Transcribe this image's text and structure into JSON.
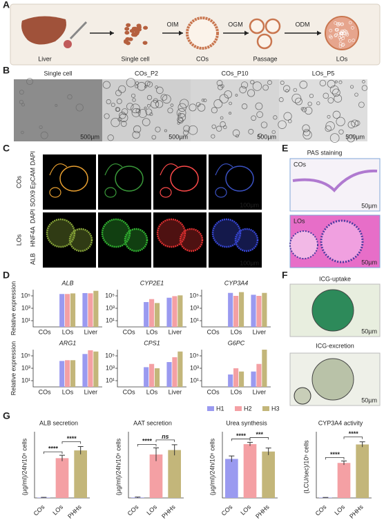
{
  "figure": {
    "panel_labels": [
      "A",
      "B",
      "C",
      "D",
      "E",
      "F",
      "G"
    ],
    "a": {
      "steps": [
        "Liver",
        "Single cell",
        "COs",
        "Passage",
        "LOs"
      ],
      "media": [
        "OIM",
        "OGM",
        "ODM"
      ]
    },
    "b": {
      "titles": [
        "Single cell",
        "COs_P2",
        "COs_P10",
        "LOs_P5"
      ],
      "scale": "500µm"
    },
    "c": {
      "rows": [
        "COs",
        "LOs"
      ],
      "stains": [
        [
          "SOX9",
          "EpCAM",
          "DAPI"
        ],
        [
          "ALB",
          "HNF4A",
          "DAPI"
        ]
      ],
      "scale": "100µm"
    },
    "e": {
      "title": "PAS staining",
      "labels": [
        "COs",
        "LOs"
      ],
      "scale": "50µm"
    },
    "f": {
      "labels": [
        "ICG-uptake",
        "ICG-excretion"
      ],
      "scale": "50µm"
    },
    "legend": [
      {
        "name": "H1",
        "color": "#9a9af0"
      },
      {
        "name": "H2",
        "color": "#f4a0a4"
      },
      {
        "name": "H3",
        "color": "#c3b67a"
      }
    ]
  },
  "chart_data": [
    {
      "type": "logbar",
      "title": "ALB",
      "ylabel": "Relative expression",
      "categories": [
        "COs",
        "LOs",
        "Liver"
      ],
      "log_scale": true,
      "ylim": [
        1,
        1000000
      ],
      "yticks": [
        {
          "value": 10,
          "label": "10¹"
        },
        {
          "value": 1000,
          "label": "10³"
        },
        {
          "value": 100000,
          "label": "10⁵"
        }
      ],
      "series": [
        {
          "values": [
            1,
            200000,
            280000
          ]
        },
        {
          "values": [
            1,
            200000,
            260000
          ]
        },
        {
          "values": [
            1,
            250000,
            650000
          ]
        }
      ]
    },
    {
      "type": "logbar",
      "title": "CYP2E1",
      "categories": [
        "COs",
        "LOs",
        "Liver"
      ],
      "log_scale": true,
      "ylim": [
        1,
        1000000
      ],
      "yticks": [
        {
          "value": 10,
          "label": "10¹"
        },
        {
          "value": 1000,
          "label": "10³"
        },
        {
          "value": 100000,
          "label": "10⁵"
        }
      ],
      "series": [
        {
          "values": [
            1,
            10000,
            50000
          ]
        },
        {
          "values": [
            1,
            30000,
            90000
          ]
        },
        {
          "values": [
            1,
            7000,
            120000
          ]
        }
      ]
    },
    {
      "type": "logbar",
      "title": "CYP3A4",
      "categories": [
        "COs",
        "LOs",
        "Liver"
      ],
      "log_scale": true,
      "ylim": [
        1,
        1000000
      ],
      "yticks": [
        {
          "value": 10,
          "label": "10¹"
        },
        {
          "value": 1000,
          "label": "10³"
        },
        {
          "value": 100000,
          "label": "10⁵"
        }
      ],
      "series": [
        {
          "values": [
            1,
            300000,
            150000
          ]
        },
        {
          "values": [
            1,
            100000,
            100000
          ]
        },
        {
          "values": [
            1,
            400000,
            300000
          ]
        }
      ]
    },
    {
      "type": "logbar",
      "title": "ARG1",
      "ylabel": "Relative expression",
      "categories": [
        "COs",
        "LOs",
        "Liver"
      ],
      "log_scale": true,
      "ylim": [
        1,
        1000000
      ],
      "yticks": [
        {
          "value": 10,
          "label": "10¹"
        },
        {
          "value": 1000,
          "label": "10³"
        },
        {
          "value": 100000,
          "label": "10⁵"
        }
      ],
      "series": [
        {
          "values": [
            1,
            15000,
            200000
          ]
        },
        {
          "values": [
            1,
            20000,
            800000
          ]
        },
        {
          "values": [
            1,
            20000,
            500000
          ]
        }
      ]
    },
    {
      "type": "logbar",
      "title": "CPS1",
      "categories": [
        "COs",
        "LOs",
        "Liver"
      ],
      "log_scale": true,
      "ylim": [
        1,
        1000000
      ],
      "yticks": [
        {
          "value": 10,
          "label": "10¹"
        },
        {
          "value": 1000,
          "label": "10³"
        },
        {
          "value": 100000,
          "label": "10⁵"
        }
      ],
      "series": [
        {
          "values": [
            1,
            1500,
            10000
          ]
        },
        {
          "values": [
            1,
            5000,
            60000
          ]
        },
        {
          "values": [
            1,
            1000,
            500000
          ]
        }
      ]
    },
    {
      "type": "logbar",
      "title": "G6PC",
      "categories": [
        "COs",
        "LOs",
        "Liver"
      ],
      "log_scale": true,
      "ylim": [
        1,
        1000000
      ],
      "yticks": [
        {
          "value": 10,
          "label": "10¹"
        },
        {
          "value": 1000,
          "label": "10³"
        },
        {
          "value": 100000,
          "label": "10⁵"
        }
      ],
      "series": [
        {
          "values": [
            1,
            100,
            300
          ]
        },
        {
          "values": [
            1,
            1000,
            5000
          ]
        },
        {
          "values": [
            1,
            300,
            1000000
          ]
        }
      ]
    },
    {
      "type": "errbar",
      "title": "ALB secretion",
      "ylabel": "(µg/ml)/24h/10⁶ cells",
      "categories": [
        "COs",
        "LOs",
        "PHHs"
      ],
      "colors": [
        "#9a9af0",
        "#f4a0a4",
        "#c3b67a"
      ],
      "ylim": [
        0,
        3.2
      ],
      "values": [
        0.02,
        2.05,
        2.45
      ],
      "errors": [
        0.01,
        0.15,
        0.2
      ],
      "annotations": [
        "****",
        "****"
      ]
    },
    {
      "type": "errbar",
      "title": "AAT secretion",
      "ylabel": "(µg/ml)/24h/10⁶ cells",
      "categories": [
        "COs",
        "LOs",
        "PHHs"
      ],
      "colors": [
        "#9a9af0",
        "#f4a0a4",
        "#c3b67a"
      ],
      "ylim": [
        0,
        14
      ],
      "values": [
        0.1,
        9.8,
        10.8
      ],
      "errors": [
        0.1,
        1.5,
        1.2
      ],
      "annotations": [
        "****",
        "ns"
      ]
    },
    {
      "type": "errbar",
      "title": "Urea synthesis",
      "ylabel": "(µg/ml)/24h/10⁶ cells",
      "categories": [
        "COs",
        "LOs",
        "PHHs"
      ],
      "colors": [
        "#9a9af0",
        "#f4a0a4",
        "#c3b67a"
      ],
      "ylim": [
        0,
        21
      ],
      "values": [
        13.2,
        18.2,
        15.7
      ],
      "errors": [
        1,
        0.6,
        1.2
      ],
      "annotations": [
        "****",
        "***"
      ]
    },
    {
      "type": "errbar",
      "title": "CYP3A4 activity",
      "ylabel": "(LCU/sec)/10⁶ cells",
      "categories": [
        "COs",
        "LOs",
        "PHHs"
      ],
      "colors": [
        "#9a9af0",
        "#f4a0a4",
        "#c3b67a"
      ],
      "ylim": [
        0,
        470
      ],
      "values": [
        3,
        265,
        405
      ],
      "errors": [
        1,
        15,
        20
      ],
      "annotations": [
        "****",
        "****"
      ]
    }
  ]
}
